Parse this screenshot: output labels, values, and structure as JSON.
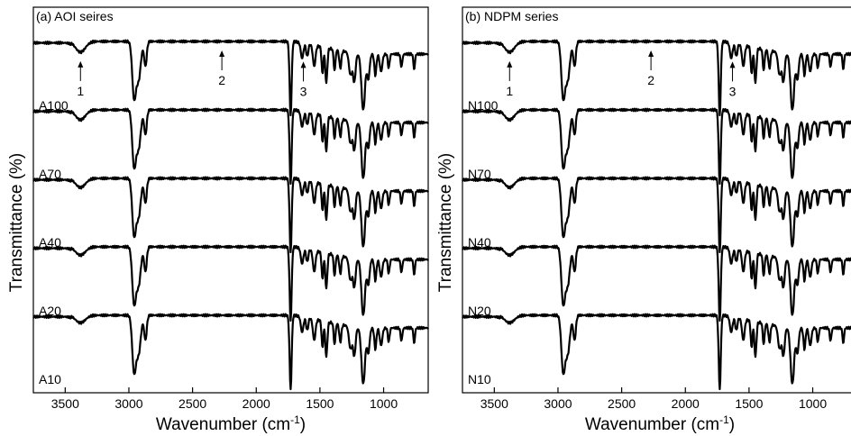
{
  "figure": {
    "ylabel": "Transmittance (%)",
    "xlabel_main": "Wavenumber (cm",
    "xlabel_sup": "-1",
    "xlabel_close": ")"
  },
  "chart_data": [
    {
      "type": "line",
      "title": "(a) AOI seires",
      "xlabel": "Wavenumber (cm-1)",
      "ylabel": "Transmittance (%)",
      "xlim": [
        3750,
        650
      ],
      "x_reversed": true,
      "xticks": [
        3500,
        3000,
        2500,
        2000,
        1500,
        1000
      ],
      "xtick_labels": [
        "3500",
        "3000",
        "2500",
        "2000",
        "1500",
        "1000"
      ],
      "y_units": "arbitrary, vertically offset",
      "series": [
        {
          "name": "A100",
          "offset": 4
        },
        {
          "name": "A70",
          "offset": 3
        },
        {
          "name": "A40",
          "offset": 2
        },
        {
          "name": "A20",
          "offset": 1
        },
        {
          "name": "A10",
          "offset": 0
        }
      ],
      "annotations": [
        {
          "text": "1",
          "x": 3380
        },
        {
          "text": "2",
          "x": 2270
        },
        {
          "text": "3",
          "x": 1630
        }
      ]
    },
    {
      "type": "line",
      "title": "(b) NDPM series",
      "xlabel": "Wavenumber (cm-1)",
      "ylabel": "Transmittance (%)",
      "xlim": [
        3750,
        650
      ],
      "x_reversed": true,
      "xticks": [
        3500,
        3000,
        2500,
        2000,
        1500,
        1000
      ],
      "xtick_labels": [
        "3500",
        "3000",
        "2500",
        "2000",
        "1500",
        "1000"
      ],
      "y_units": "arbitrary, vertically offset",
      "series": [
        {
          "name": "N100",
          "offset": 4
        },
        {
          "name": "N70",
          "offset": 3
        },
        {
          "name": "N40",
          "offset": 2
        },
        {
          "name": "N20",
          "offset": 1
        },
        {
          "name": "N10",
          "offset": 0
        }
      ],
      "annotations": [
        {
          "text": "1",
          "x": 3380
        },
        {
          "text": "2",
          "x": 2270
        },
        {
          "text": "3",
          "x": 1630
        }
      ]
    }
  ]
}
